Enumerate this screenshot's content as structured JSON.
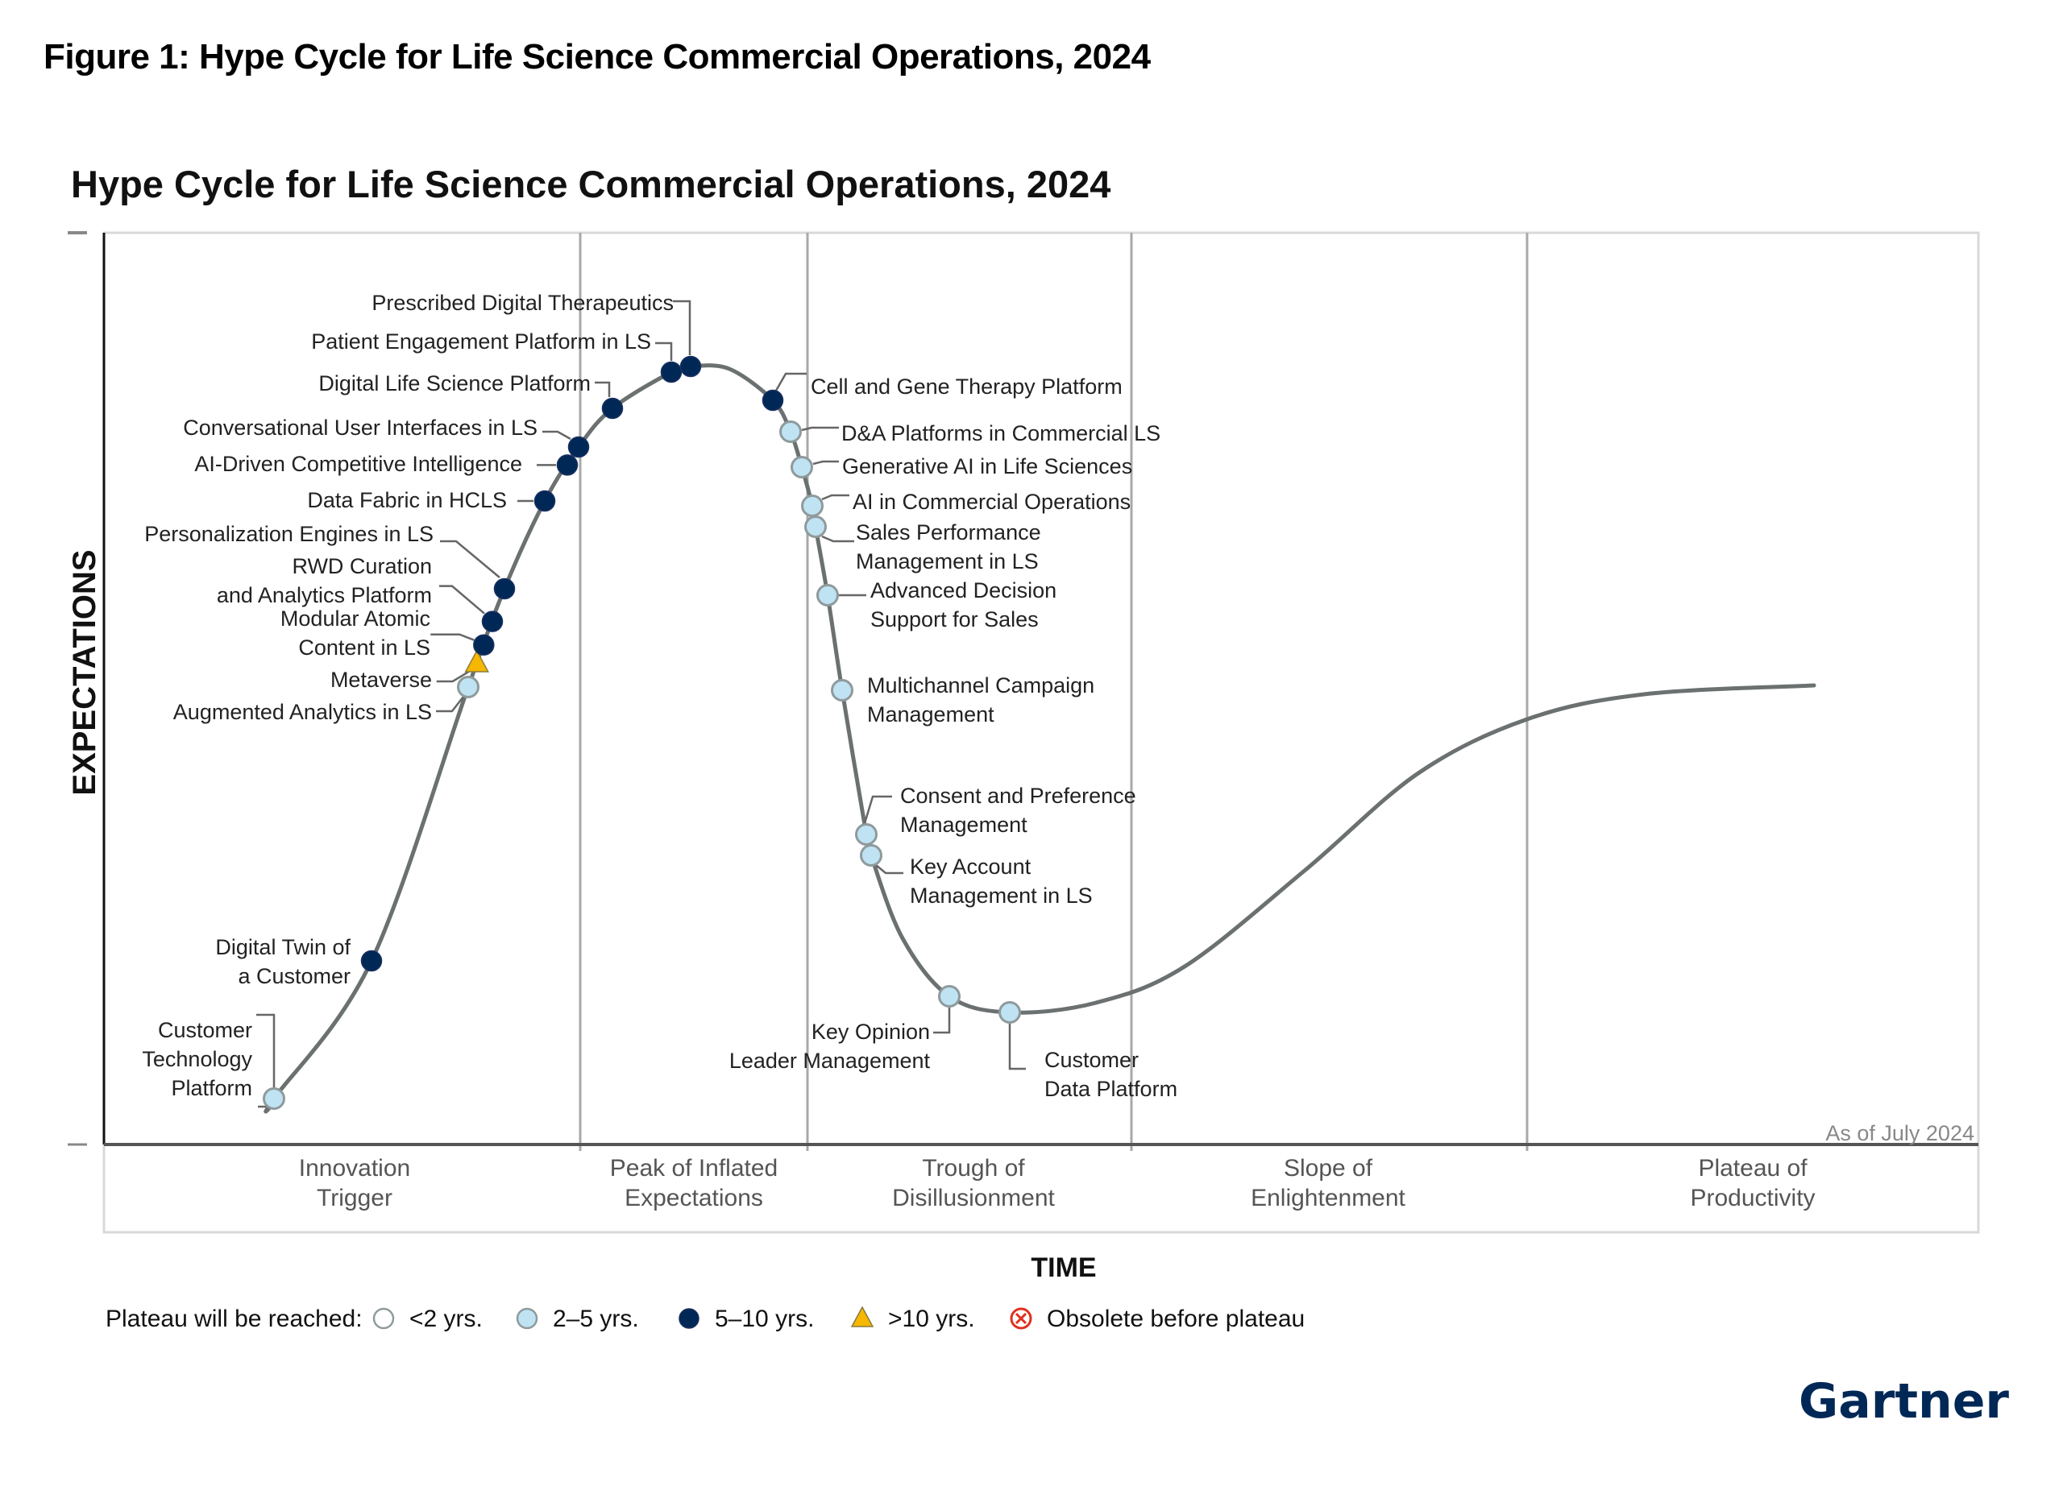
{
  "figure_title": "Figure 1: Hype Cycle for Life Science Commercial Operations, 2024",
  "logo": "Gartner",
  "chart_data": {
    "type": "scatter",
    "subtype": "hype-cycle",
    "title": "Hype Cycle for Life Science Commercial Operations, 2024",
    "xlabel": "TIME",
    "ylabel": "EXPECTATIONS",
    "as_of": "As of July 2024",
    "grid": false,
    "phases": [
      {
        "name": "Innovation\nTrigger"
      },
      {
        "name": "Peak of Inflated\nExpectations"
      },
      {
        "name": "Trough of\nDisillusionment"
      },
      {
        "name": "Slope of\nEnlightenment"
      },
      {
        "name": "Plateau of\nProductivity"
      }
    ],
    "legend": {
      "title": "Plateau will be reached:",
      "placement": "bottom-left",
      "items": [
        {
          "key": "lt2",
          "label": "<2 yrs."
        },
        {
          "key": "2to5",
          "label": "2–5 yrs."
        },
        {
          "key": "5to10",
          "label": "5–10 yrs."
        },
        {
          "key": "gt10",
          "label": ">10 yrs."
        },
        {
          "key": "obsolete",
          "label": "Obsolete before plateau"
        }
      ]
    },
    "colors": {
      "lt2": "#ffffff",
      "2to5": "#bfe3f2",
      "5to10": "#002856",
      "gt10": "#f5b700",
      "obsolete": "#e0301e",
      "curve": "#6b7070",
      "logo": "#002856"
    },
    "points": [
      {
        "label": "Customer\nTechnology\nPlatform",
        "phase": "Innovation Trigger",
        "t": 0.09,
        "plateau": "2to5"
      },
      {
        "label": "Digital Twin of\na Customer",
        "phase": "Innovation Trigger",
        "t": 0.15,
        "plateau": "5to10"
      },
      {
        "label": "Augmented Analytics in LS",
        "phase": "Innovation Trigger",
        "t": 0.205,
        "plateau": "2to5"
      },
      {
        "label": "Metaverse",
        "phase": "Innovation Trigger",
        "t": 0.21,
        "plateau": "gt10"
      },
      {
        "label": "Modular Atomic\nContent in LS",
        "phase": "Innovation Trigger",
        "t": 0.214,
        "plateau": "5to10"
      },
      {
        "label": "RWD Curation\nand Analytics Platform",
        "phase": "Innovation Trigger",
        "t": 0.219,
        "plateau": "5to10"
      },
      {
        "label": "Personalization Engines in LS",
        "phase": "Innovation Trigger",
        "t": 0.226,
        "plateau": "5to10"
      },
      {
        "label": "Data Fabric in HCLS",
        "phase": "Innovation Trigger",
        "t": 0.245,
        "plateau": "5to10"
      },
      {
        "label": "AI-Driven Competitive Intelligence",
        "phase": "Innovation Trigger",
        "t": 0.257,
        "plateau": "5to10"
      },
      {
        "label": "Conversational User Interfaces in LS",
        "phase": "Peak of Inflated Expectations",
        "t": 0.263,
        "plateau": "5to10"
      },
      {
        "label": "Digital Life Science Platform",
        "phase": "Peak of Inflated Expectations",
        "t": 0.28,
        "plateau": "5to10"
      },
      {
        "label": "Patient Engagement Platform in LS",
        "phase": "Peak of Inflated Expectations",
        "t": 0.313,
        "plateau": "5to10"
      },
      {
        "label": "Prescribed Digital Therapeutics",
        "phase": "Peak of Inflated Expectations",
        "t": 0.323,
        "plateau": "5to10"
      },
      {
        "label": "Cell and Gene Therapy Platform",
        "phase": "Peak of Inflated Expectations",
        "t": 0.368,
        "plateau": "5to10"
      },
      {
        "label": "D&A Platforms in Commercial LS",
        "phase": "Peak of Inflated Expectations",
        "t": 0.377,
        "plateau": "2to5"
      },
      {
        "label": "Generative AI in Life Sciences",
        "phase": "Trough of Disillusionment",
        "t": 0.383,
        "plateau": "2to5"
      },
      {
        "label": "AI in Commercial Operations",
        "phase": "Trough of Disillusionment",
        "t": 0.388,
        "plateau": "2to5"
      },
      {
        "label": "Sales Performance\nManagement in LS",
        "phase": "Trough of Disillusionment",
        "t": 0.39,
        "plateau": "2to5"
      },
      {
        "label": "Advanced Decision\nSupport for Sales",
        "phase": "Trough of Disillusionment",
        "t": 0.396,
        "plateau": "2to5"
      },
      {
        "label": "Multichannel Campaign\nManagement",
        "phase": "Trough of Disillusionment",
        "t": 0.404,
        "plateau": "2to5"
      },
      {
        "label": "Consent and Preference\nManagement",
        "phase": "Trough of Disillusionment",
        "t": 0.417,
        "plateau": "2to5"
      },
      {
        "label": "Key Account\nManagement in LS",
        "phase": "Trough of Disillusionment",
        "t": 0.42,
        "plateau": "2to5"
      },
      {
        "label": "Key Opinion\nLeader Management",
        "phase": "Trough of Disillusionment",
        "t": 0.462,
        "plateau": "2to5"
      },
      {
        "label": "Customer\nData Platform",
        "phase": "Trough of Disillusionment",
        "t": 0.494,
        "plateau": "2to5"
      }
    ]
  }
}
